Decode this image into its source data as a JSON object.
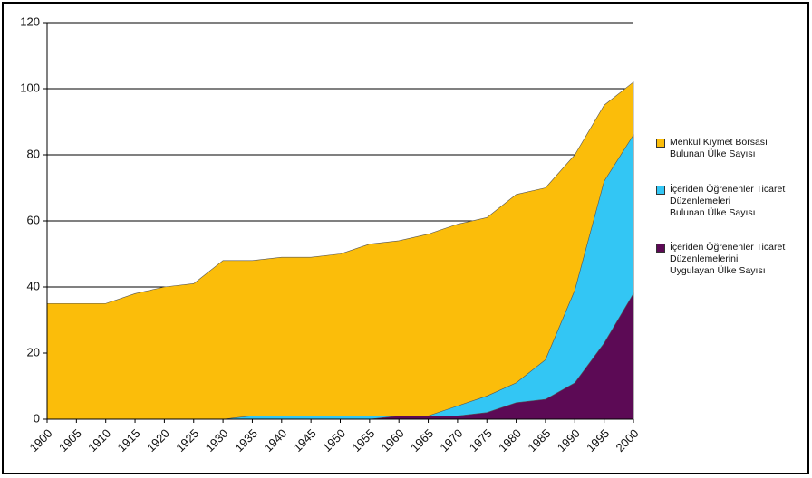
{
  "chart_data": {
    "type": "area",
    "stacked": false,
    "x": [
      1900,
      1905,
      1910,
      1915,
      1920,
      1925,
      1930,
      1935,
      1940,
      1945,
      1950,
      1955,
      1960,
      1965,
      1970,
      1975,
      1980,
      1985,
      1990,
      1995,
      2000
    ],
    "xlim": [
      1900,
      2000
    ],
    "xticks": [
      1900,
      1905,
      1910,
      1915,
      1920,
      1925,
      1930,
      1935,
      1940,
      1945,
      1950,
      1955,
      1960,
      1965,
      1970,
      1975,
      1980,
      1985,
      1990,
      1995,
      2000
    ],
    "ylim": [
      0,
      120
    ],
    "yticks": [
      0,
      20,
      40,
      60,
      80,
      100,
      120
    ],
    "grid": true,
    "legend": "right",
    "series": [
      {
        "name": "Menkul Kıymet Borsası\nBulunan Ülke Sayısı",
        "color": "#fbbd0a",
        "values": [
          35,
          35,
          35,
          38,
          40,
          41,
          48,
          48,
          49,
          49,
          50,
          53,
          54,
          56,
          59,
          61,
          68,
          70,
          80,
          95,
          102
        ]
      },
      {
        "name": "İçeriden Öğrenenler Ticaret\nDüzenlemeleri\nBulunan Ülke Sayısı",
        "color": "#33c6f4",
        "values": [
          0,
          0,
          0,
          0,
          0,
          0,
          0,
          1,
          1,
          1,
          1,
          1,
          1,
          1,
          4,
          7,
          11,
          18,
          39,
          72,
          86
        ]
      },
      {
        "name": "İçeriden Öğrenenler Ticaret\nDüzenlemelerini\nUygulayan Ülke Sayısı",
        "color": "#5c0a55",
        "values": [
          0,
          0,
          0,
          0,
          0,
          0,
          0,
          0,
          0,
          0,
          0,
          0,
          1,
          1,
          1,
          2,
          5,
          6,
          11,
          23,
          38
        ]
      }
    ]
  }
}
